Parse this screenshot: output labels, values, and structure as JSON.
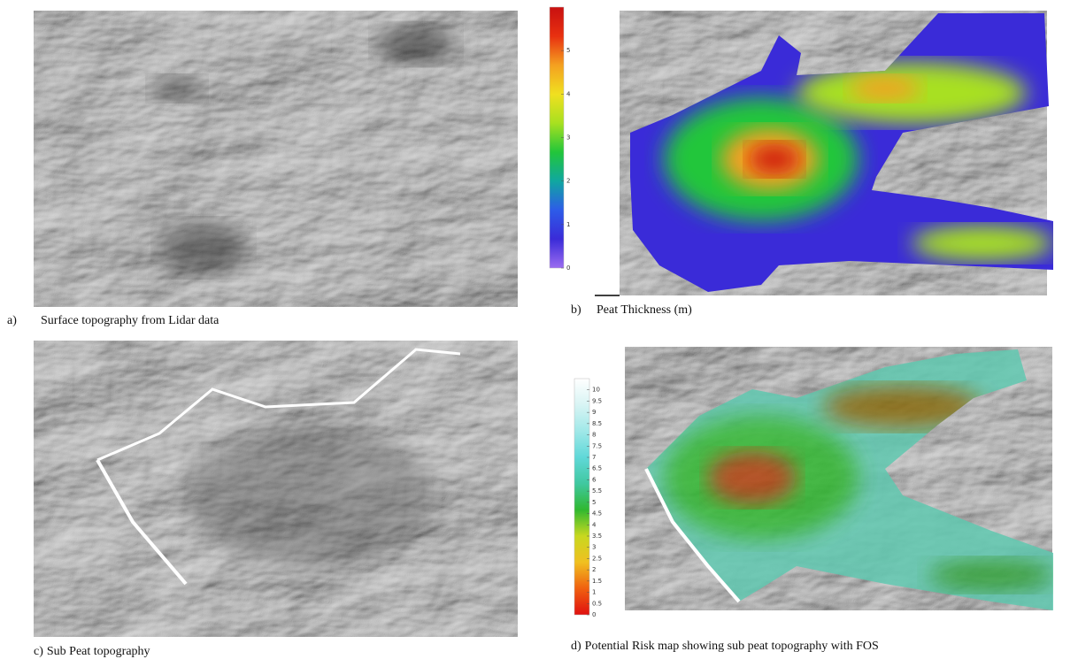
{
  "panels": [
    {
      "label": "a)",
      "caption": "Surface topography from Lidar data"
    },
    {
      "label": "b)",
      "caption": "Peat Thickness (m)",
      "colorbar": {
        "lim": [
          0,
          6
        ],
        "ticks": [
          0,
          1,
          2,
          3,
          4,
          5
        ],
        "colors": [
          "#9b6cf0",
          "#3a2bd8",
          "#2d5ce8",
          "#10a7a0",
          "#22c63a",
          "#a8e020",
          "#f0e020",
          "#f4a020",
          "#e83010",
          "#c81010"
        ]
      }
    },
    {
      "label": "c)",
      "caption": "Sub Peat topography"
    },
    {
      "label": "d)",
      "caption": "Potential Risk map showing sub peat topography with FOS",
      "colorbar": {
        "lim": [
          0,
          10.5
        ],
        "ticks": [
          0,
          0.5,
          1,
          1.5,
          2,
          2.5,
          3,
          3.5,
          4,
          4.5,
          5,
          5.5,
          6,
          6.5,
          7,
          7.5,
          8,
          8.5,
          9,
          9.5,
          10
        ],
        "colors": [
          "#e01010",
          "#f06010",
          "#f0c020",
          "#c8d820",
          "#30b830",
          "#40c8a0",
          "#60d8d8",
          "#a0e8e8",
          "#d8f4f4",
          "#ffffff"
        ]
      }
    }
  ]
}
